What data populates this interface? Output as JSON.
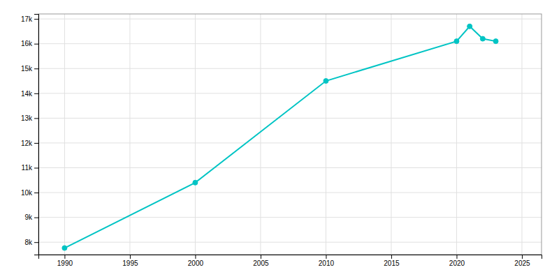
{
  "chart_data": {
    "type": "line",
    "x": [
      1990,
      2000,
      2010,
      2020,
      2021,
      2022,
      2023
    ],
    "values": [
      7765,
      10400,
      14500,
      16100,
      16700,
      16200,
      16100
    ],
    "color": "#00c4c4",
    "marker": "circle",
    "xlim": [
      1988.0,
      2026.5
    ],
    "ylim": [
      7500,
      17200
    ],
    "xticks": [
      1990,
      1995,
      2000,
      2005,
      2010,
      2015,
      2020,
      2025
    ],
    "yticks": [
      {
        "value": 8000,
        "label": "8k"
      },
      {
        "value": 9000,
        "label": "9k"
      },
      {
        "value": 10000,
        "label": "10k"
      },
      {
        "value": 11000,
        "label": "11k"
      },
      {
        "value": 12000,
        "label": "12k"
      },
      {
        "value": 13000,
        "label": "13k"
      },
      {
        "value": 14000,
        "label": "14k"
      },
      {
        "value": 15000,
        "label": "15k"
      },
      {
        "value": 16000,
        "label": "16k"
      },
      {
        "value": 17000,
        "label": "17k"
      }
    ],
    "grid": true
  }
}
